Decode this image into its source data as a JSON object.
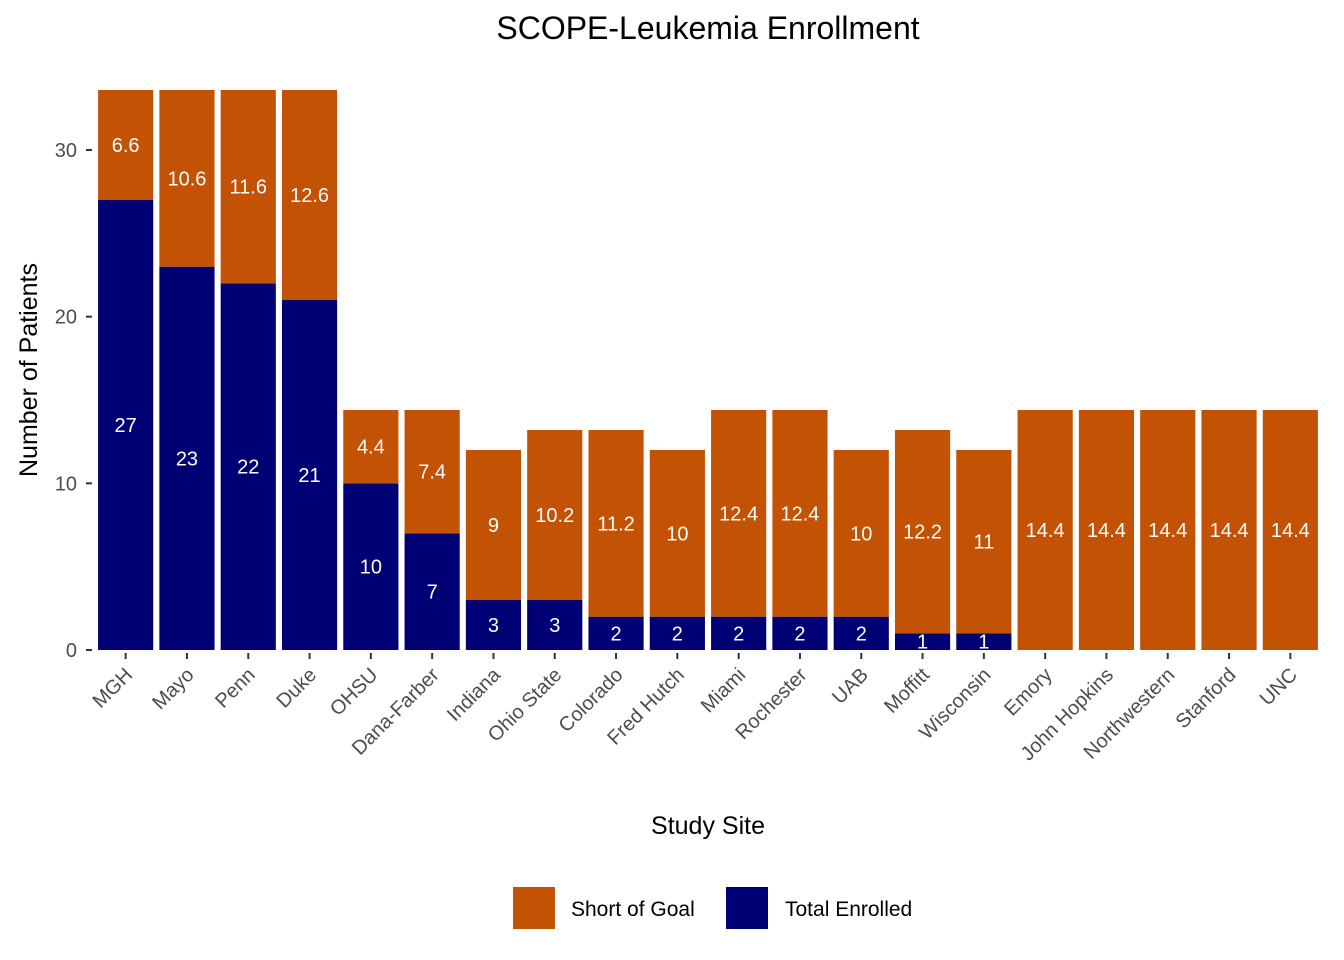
{
  "chart_data": {
    "type": "bar",
    "stacked": true,
    "title": "SCOPE-Leukemia Enrollment",
    "xlabel": "Study Site",
    "ylabel": "Number of Patients",
    "ylim": [
      0,
      33.6
    ],
    "yticks": [
      0,
      10,
      20,
      30
    ],
    "grid": false,
    "legend_position": "bottom",
    "categories": [
      "MGH",
      "Mayo",
      "Penn",
      "Duke",
      "OHSU",
      "Dana-Farber",
      "Indiana",
      "Ohio State",
      "Colorado",
      "Fred Hutch",
      "Miami",
      "Rochester",
      "UAB",
      "Moffitt",
      "Wisconsin",
      "Emory",
      "John Hopkins",
      "Northwestern",
      "Stanford",
      "UNC"
    ],
    "series": [
      {
        "name": "Total Enrolled",
        "color": "#000075",
        "values": [
          27,
          23,
          22,
          21,
          10,
          7,
          3,
          3,
          2,
          2,
          2,
          2,
          2,
          1,
          1,
          0,
          0,
          0,
          0,
          0
        ],
        "labels": [
          "27",
          "23",
          "22",
          "21",
          "10",
          "7",
          "3",
          "3",
          "2",
          "2",
          "2",
          "2",
          "2",
          "1",
          "1",
          "",
          "",
          "",
          "",
          ""
        ]
      },
      {
        "name": "Short of Goal",
        "color": "#C35204",
        "values": [
          6.6,
          10.6,
          11.6,
          12.6,
          4.4,
          7.4,
          9,
          10.2,
          11.2,
          10,
          12.4,
          12.4,
          10,
          12.2,
          11,
          14.4,
          14.4,
          14.4,
          14.4,
          14.4
        ],
        "labels": [
          "6.6",
          "10.6",
          "11.6",
          "12.6",
          "4.4",
          "7.4",
          "9",
          "10.2",
          "11.2",
          "10",
          "12.4",
          "12.4",
          "10",
          "12.2",
          "11",
          "14.4",
          "14.4",
          "14.4",
          "14.4",
          "14.4"
        ]
      }
    ],
    "legend": [
      {
        "name": "Short of Goal",
        "color": "#C35204"
      },
      {
        "name": "Total Enrolled",
        "color": "#000075"
      }
    ]
  }
}
